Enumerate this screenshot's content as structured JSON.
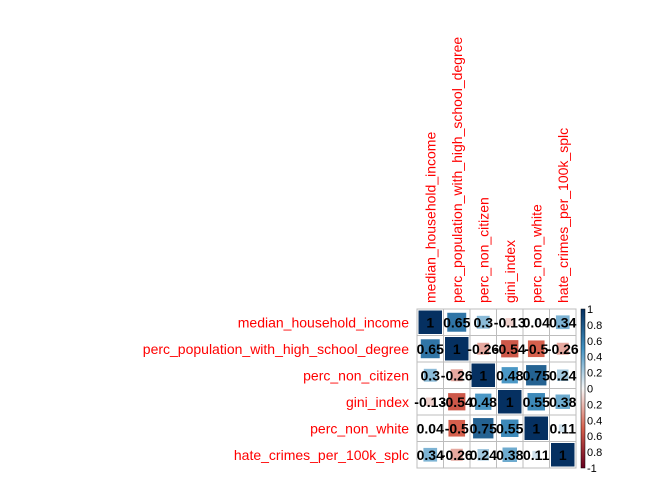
{
  "chart_data": {
    "type": "heatmap",
    "method": "square",
    "variables": [
      "median_household_income",
      "perc_population_with_high_school_degree",
      "perc_non_citizen",
      "gini_index",
      "perc_non_white",
      "hate_crimes_per_100k_splc"
    ],
    "value_labels": [
      [
        "1",
        "0.65",
        "0.3",
        "-0.13",
        "0.04",
        "0.34"
      ],
      [
        "0.65",
        "1",
        "-0.26",
        "-0.54",
        "-0.5",
        "-0.26"
      ],
      [
        "0.3",
        "-0.26",
        "1",
        "0.48",
        "0.75",
        "0.24"
      ],
      [
        "-0.13",
        "-0.54",
        "0.48",
        "1",
        "0.55",
        "0.38"
      ],
      [
        "0.04",
        "-0.5",
        "0.75",
        "0.55",
        "1",
        "0.11"
      ],
      [
        "0.34",
        "-0.26",
        "0.24",
        "0.38",
        "0.11",
        "1"
      ]
    ],
    "matrix": [
      [
        1,
        0.65,
        0.3,
        -0.13,
        0.04,
        0.34
      ],
      [
        0.65,
        1,
        -0.26,
        -0.54,
        -0.5,
        -0.26
      ],
      [
        0.3,
        -0.26,
        1,
        0.48,
        0.75,
        0.24
      ],
      [
        -0.13,
        -0.54,
        0.48,
        1,
        0.55,
        0.38
      ],
      [
        0.04,
        -0.5,
        0.75,
        0.55,
        1,
        0.11
      ],
      [
        0.34,
        -0.26,
        0.24,
        0.38,
        0.11,
        1
      ]
    ],
    "colorbar": {
      "ticks": [
        "1",
        "0.8",
        "0.6",
        "0.4",
        "0.2",
        "0",
        "0.2",
        "0.4",
        "0.6",
        "0.8",
        "-1"
      ],
      "range": [
        -1,
        1
      ],
      "placement": "right"
    },
    "colors": {
      "negative_end": "#67001f",
      "negative_mid": "#d6604d",
      "neutral": "#f7f7f7",
      "positive_mid": "#4393c3",
      "positive_end": "#053061",
      "label": "#ff0000",
      "value": "#000000"
    }
  }
}
